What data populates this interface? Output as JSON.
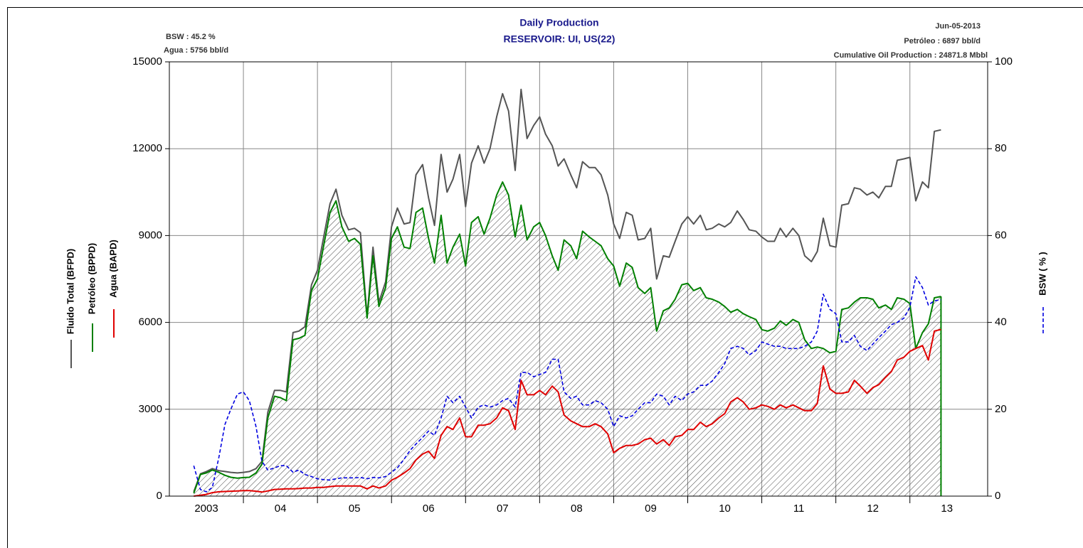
{
  "chart_data": {
    "type": "line",
    "title": "Daily Production",
    "subtitle": "RESERVOIR: UI, US(22)",
    "annotations": [
      "BSW : 45.2 %",
      "Agua : 5756 bbl/d",
      "Jun-05-2013",
      "Petróleo : 6897 bbl/d",
      "Cumulative Oil Production : 24871.8 Mbbl"
    ],
    "y2_label": "BSW ( % )",
    "x": [
      2003.33,
      2003.42,
      2003.5,
      2003.58,
      2003.67,
      2003.75,
      2003.83,
      2003.92,
      2004,
      2004.08,
      2004.17,
      2004.25,
      2004.33,
      2004.42,
      2004.5,
      2004.58,
      2004.67,
      2004.75,
      2004.83,
      2004.92,
      2005,
      2005.08,
      2005.17,
      2005.25,
      2005.33,
      2005.42,
      2005.5,
      2005.58,
      2005.67,
      2005.75,
      2005.83,
      2005.92,
      2006,
      2006.08,
      2006.17,
      2006.25,
      2006.33,
      2006.42,
      2006.5,
      2006.58,
      2006.67,
      2006.75,
      2006.83,
      2006.92,
      2007,
      2007.08,
      2007.17,
      2007.25,
      2007.33,
      2007.42,
      2007.5,
      2007.58,
      2007.67,
      2007.75,
      2007.83,
      2007.92,
      2008,
      2008.08,
      2008.17,
      2008.25,
      2008.33,
      2008.42,
      2008.5,
      2008.58,
      2008.67,
      2008.75,
      2008.83,
      2008.92,
      2009,
      2009.08,
      2009.17,
      2009.25,
      2009.33,
      2009.42,
      2009.5,
      2009.58,
      2009.67,
      2009.75,
      2009.83,
      2009.92,
      2010,
      2010.08,
      2010.17,
      2010.25,
      2010.33,
      2010.42,
      2010.5,
      2010.58,
      2010.67,
      2010.75,
      2010.83,
      2010.92,
      2011,
      2011.08,
      2011.17,
      2011.25,
      2011.33,
      2011.42,
      2011.5,
      2011.58,
      2011.67,
      2011.75,
      2011.83,
      2011.92,
      2012,
      2012.08,
      2012.17,
      2012.25,
      2012.33,
      2012.42,
      2012.5,
      2012.58,
      2012.67,
      2012.75,
      2012.83,
      2012.92,
      2013,
      2013.08,
      2013.17,
      2013.25,
      2013.33,
      2013.42
    ],
    "series": [
      {
        "name": "Fluido Total  (BFPD)",
        "color": "#555555",
        "values": [
          150,
          770,
          850,
          950,
          880,
          850,
          820,
          800,
          820,
          850,
          950,
          1200,
          2900,
          3650,
          3650,
          3600,
          5650,
          5700,
          5850,
          7300,
          7800,
          8900,
          10100,
          10600,
          9700,
          9200,
          9250,
          9100,
          6200,
          8600,
          6700,
          7400,
          9300,
          9950,
          9400,
          9450,
          11100,
          11450,
          10300,
          9350,
          11800,
          10500,
          10950,
          11800,
          10000,
          11500,
          12100,
          11500,
          12000,
          13100,
          13900,
          13300,
          11250,
          14050,
          12350,
          12800,
          13100,
          12500,
          12100,
          11400,
          11650,
          11100,
          10650,
          11550,
          11350,
          11350,
          11100,
          10400,
          9400,
          8900,
          9800,
          9700,
          8850,
          8900,
          9250,
          7500,
          8300,
          8250,
          8800,
          9400,
          9650,
          9400,
          9700,
          9200,
          9250,
          9400,
          9300,
          9450,
          9850,
          9550,
          9200,
          9150,
          8950,
          8800,
          8800,
          9250,
          8950,
          9250,
          9000,
          8300,
          8100,
          8450,
          9600,
          8650,
          8600,
          10050,
          10100,
          10650,
          10600,
          10400,
          10500,
          10300,
          10700,
          10700,
          11600,
          11650,
          11700,
          10200,
          10850,
          10650,
          12600,
          12650
        ]
      },
      {
        "name": "Petróleo (BPPD)",
        "color": "#008000",
        "area": true,
        "values": [
          100,
          750,
          800,
          900,
          820,
          720,
          650,
          620,
          640,
          650,
          800,
          1100,
          2700,
          3450,
          3400,
          3300,
          5400,
          5450,
          5550,
          7100,
          7500,
          8600,
          9800,
          10200,
          9300,
          8800,
          8900,
          8700,
          6150,
          8300,
          6550,
          7200,
          8900,
          9300,
          8600,
          8550,
          9800,
          9950,
          8900,
          8050,
          9700,
          8050,
          8600,
          9050,
          7950,
          9450,
          9650,
          9050,
          9600,
          10400,
          10850,
          10400,
          8950,
          10050,
          8850,
          9300,
          9450,
          9000,
          8300,
          7800,
          8850,
          8650,
          8200,
          9150,
          8950,
          8800,
          8650,
          8200,
          7950,
          7250,
          8050,
          7900,
          7200,
          7000,
          7200,
          5700,
          6400,
          6500,
          6800,
          7300,
          7350,
          7100,
          7200,
          6850,
          6800,
          6700,
          6550,
          6350,
          6450,
          6300,
          6200,
          6100,
          5750,
          5700,
          5800,
          6050,
          5900,
          6100,
          6000,
          5400,
          5100,
          5150,
          5100,
          4950,
          5000,
          6450,
          6500,
          6700,
          6850,
          6850,
          6800,
          6500,
          6600,
          6450,
          6850,
          6800,
          6650,
          5100,
          5650,
          5950,
          6850,
          6897
        ]
      },
      {
        "name": "Agua (BAPD)",
        "color": "#e00000",
        "values": [
          0,
          30,
          60,
          120,
          150,
          160,
          170,
          180,
          190,
          190,
          170,
          140,
          180,
          230,
          240,
          250,
          250,
          260,
          280,
          280,
          300,
          300,
          330,
          350,
          350,
          350,
          350,
          350,
          250,
          350,
          280,
          350,
          550,
          650,
          800,
          950,
          1250,
          1450,
          1550,
          1300,
          2100,
          2400,
          2300,
          2700,
          2050,
          2050,
          2450,
          2450,
          2500,
          2700,
          3050,
          2950,
          2300,
          4000,
          3500,
          3500,
          3650,
          3500,
          3800,
          3600,
          2800,
          2600,
          2500,
          2400,
          2400,
          2500,
          2400,
          2150,
          1500,
          1650,
          1750,
          1750,
          1800,
          1950,
          2000,
          1800,
          1950,
          1750,
          2050,
          2100,
          2300,
          2300,
          2550,
          2400,
          2500,
          2700,
          2850,
          3250,
          3400,
          3250,
          3000,
          3050,
          3150,
          3100,
          3000,
          3150,
          3050,
          3150,
          3050,
          2950,
          2950,
          3200,
          4500,
          3700,
          3550,
          3550,
          3600,
          4000,
          3800,
          3550,
          3750,
          3850,
          4100,
          4300,
          4700,
          4800,
          5000,
          5100,
          5200,
          4700,
          5700,
          5756
        ]
      },
      {
        "name": "BSW ( % )",
        "color": "#0000e0",
        "axis": "y2",
        "dashed": true,
        "values": [
          7,
          1.5,
          1,
          2,
          9,
          16.5,
          20,
          23.5,
          24,
          22,
          16,
          8,
          6,
          6.5,
          7,
          7,
          5.5,
          6,
          5,
          4.5,
          4,
          3.8,
          3.7,
          4,
          4.2,
          4.2,
          4.2,
          4.3,
          4,
          4.3,
          4.2,
          4.5,
          5.5,
          6.5,
          8.5,
          10.5,
          12,
          13.5,
          15,
          14,
          18,
          23,
          21.5,
          23,
          20.5,
          18,
          20.5,
          21,
          20.5,
          21,
          22,
          22.5,
          20.5,
          28.5,
          28.5,
          27.5,
          28,
          28.5,
          31.5,
          31.5,
          24,
          22.5,
          23,
          21,
          21,
          22,
          21.5,
          20,
          16,
          18.5,
          18,
          18.5,
          20,
          21.5,
          21.5,
          23.5,
          23,
          21,
          23,
          22,
          23.5,
          24,
          25.5,
          25.5,
          26.5,
          28.5,
          30.5,
          34,
          34.5,
          34,
          32.5,
          33.5,
          35.5,
          35,
          34.5,
          34.5,
          34,
          34,
          34,
          34.5,
          35.5,
          38,
          46.5,
          43,
          42,
          35.5,
          35.5,
          37,
          34.5,
          33.5,
          35,
          36.5,
          38,
          39.5,
          40,
          41,
          43.5,
          50.5,
          48,
          44,
          45,
          45.2
        ]
      }
    ],
    "xlim": [
      2003,
      2014.05
    ],
    "xticks": [
      {
        "value": 2003.5,
        "label": "2003"
      },
      {
        "value": 2004.5,
        "label": "04"
      },
      {
        "value": 2005.5,
        "label": "05"
      },
      {
        "value": 2006.5,
        "label": "06"
      },
      {
        "value": 2007.5,
        "label": "07"
      },
      {
        "value": 2008.5,
        "label": "08"
      },
      {
        "value": 2009.5,
        "label": "09"
      },
      {
        "value": 2010.5,
        "label": "10"
      },
      {
        "value": 2011.5,
        "label": "11"
      },
      {
        "value": 2012.5,
        "label": "12"
      },
      {
        "value": 2013.5,
        "label": "13"
      }
    ],
    "xgrid": [
      2004,
      2005,
      2006,
      2007,
      2008,
      2009,
      2010,
      2011,
      2012,
      2013
    ],
    "ylim": [
      0,
      15000
    ],
    "yticks": [
      0,
      3000,
      6000,
      9000,
      12000,
      15000
    ],
    "y2lim": [
      0,
      100
    ],
    "y2ticks": [
      0,
      20,
      40,
      60,
      80,
      100
    ],
    "grid": true
  }
}
